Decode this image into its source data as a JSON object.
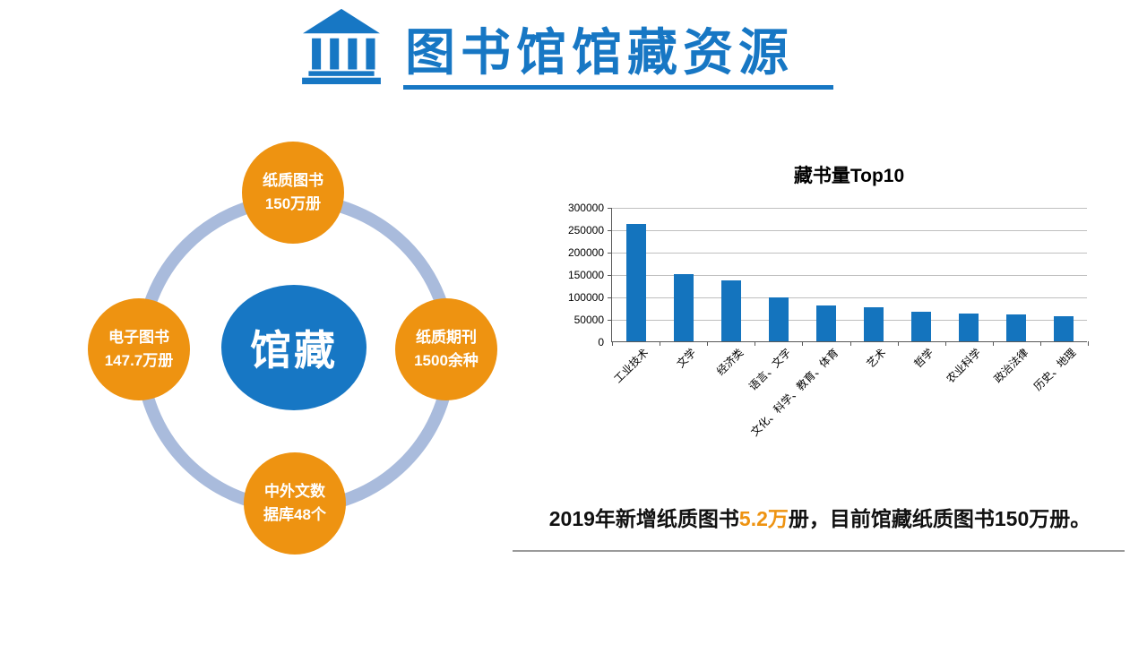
{
  "header": {
    "title": "图书馆馆藏资源"
  },
  "diagram": {
    "center_label": "馆藏",
    "nodes": [
      {
        "id": "paper-books",
        "line1": "纸质图书",
        "line2": "150万册"
      },
      {
        "id": "e-books",
        "line1": "电子图书",
        "line2": "147.7万册"
      },
      {
        "id": "paper-journals",
        "line1": "纸质期刊",
        "line2": "1500余种"
      },
      {
        "id": "databases",
        "line1": "中外文数",
        "line2": "据库48个"
      }
    ]
  },
  "chart_data": {
    "type": "bar",
    "title": "藏书量Top10",
    "categories": [
      "工业技术",
      "文学",
      "经济类",
      "语言、文字",
      "文化、科学、教育、体育",
      "艺术",
      "哲学",
      "农业科学",
      "政治法律",
      "历史、地理"
    ],
    "values": [
      262000,
      150000,
      137000,
      99000,
      81000,
      77000,
      67000,
      63000,
      60000,
      57000
    ],
    "xlabel": "",
    "ylabel": "",
    "ylim": [
      0,
      300000
    ],
    "ytick_step": 50000,
    "grid": true,
    "legend": false,
    "bar_color": "#1474BE"
  },
  "footer": {
    "prefix": "2019年新增纸质图书",
    "highlight": "5.2万",
    "suffix": "册，目前馆藏纸质图书150万册。"
  },
  "colors": {
    "brand_blue": "#1777C4",
    "accent_orange": "#EE9311",
    "ring_blue": "#A9BBDC",
    "grid_gray": "#BFBFBF",
    "axis_gray": "#595959"
  }
}
